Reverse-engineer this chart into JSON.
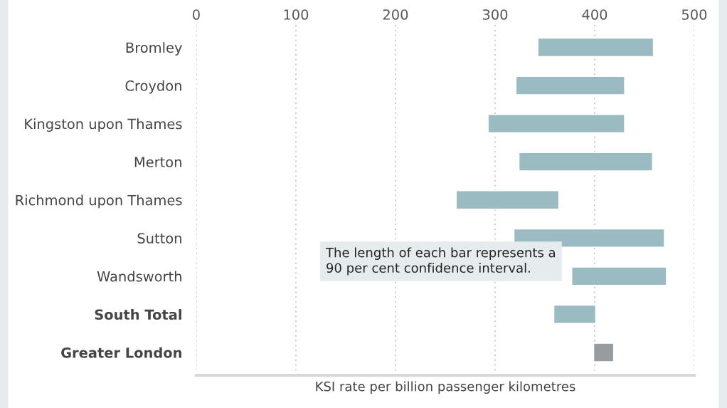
{
  "chart_data": {
    "type": "bar",
    "orientation": "horizontal",
    "categories": [
      "Bromley",
      "Croydon",
      "Kingston upon Thames",
      "Merton",
      "Richmond upon Thames",
      "Sutton",
      "Wandsworth",
      "South Total",
      "Greater London"
    ],
    "base": [
      343,
      321,
      293,
      324,
      261,
      319,
      377,
      359,
      399
    ],
    "values": [
      116,
      109,
      137,
      134,
      103,
      151,
      95,
      42,
      20
    ],
    "colors": [
      "#9abbc1",
      "#9abbc1",
      "#9abbc1",
      "#9abbc1",
      "#9abbc1",
      "#9abbc1",
      "#9abbc1",
      "#9abbc1",
      "#979ca1"
    ],
    "xlabel": "KSI rate per billion passenger kilometres",
    "xlim": [
      0,
      500
    ],
    "xticks": [
      0,
      100,
      200,
      300,
      400,
      500
    ],
    "grid": "x",
    "annotations": [
      "The length of each bar represents a 90 per cent confidence interval."
    ]
  }
}
